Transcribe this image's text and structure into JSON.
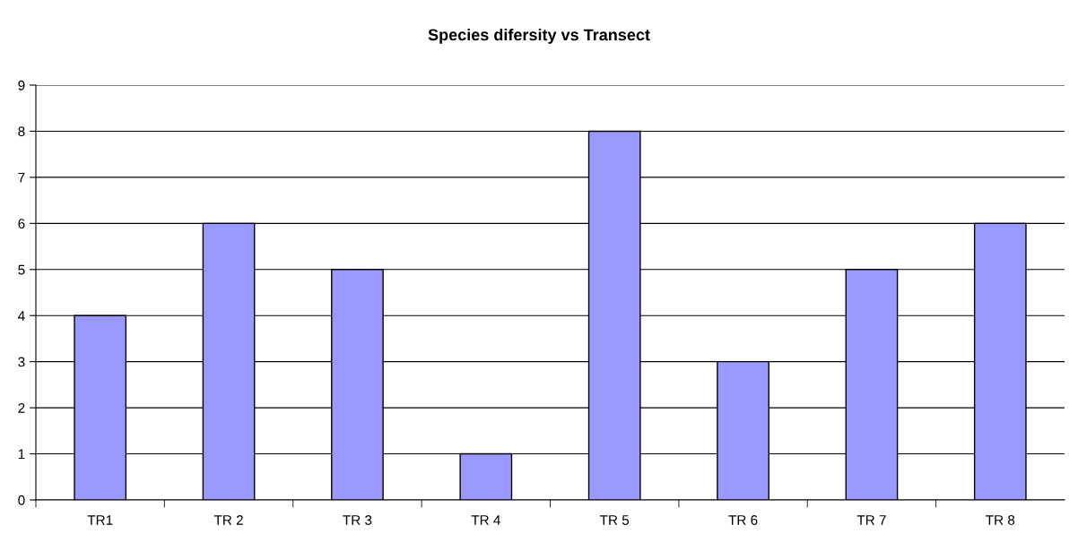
{
  "chart_data": {
    "type": "bar",
    "title": "Species difersity vs Transect",
    "categories": [
      "TR1",
      "TR 2",
      "TR 3",
      "TR 4",
      "TR 5",
      "TR 6",
      "TR 7",
      "TR 8"
    ],
    "values": [
      4,
      6,
      5,
      1,
      8,
      3,
      5,
      6
    ],
    "color": "#9999ff",
    "ylim": [
      0,
      9
    ],
    "yticks": [
      0,
      1,
      2,
      3,
      4,
      5,
      6,
      7,
      8,
      9
    ],
    "grid": "y",
    "legend": false
  }
}
